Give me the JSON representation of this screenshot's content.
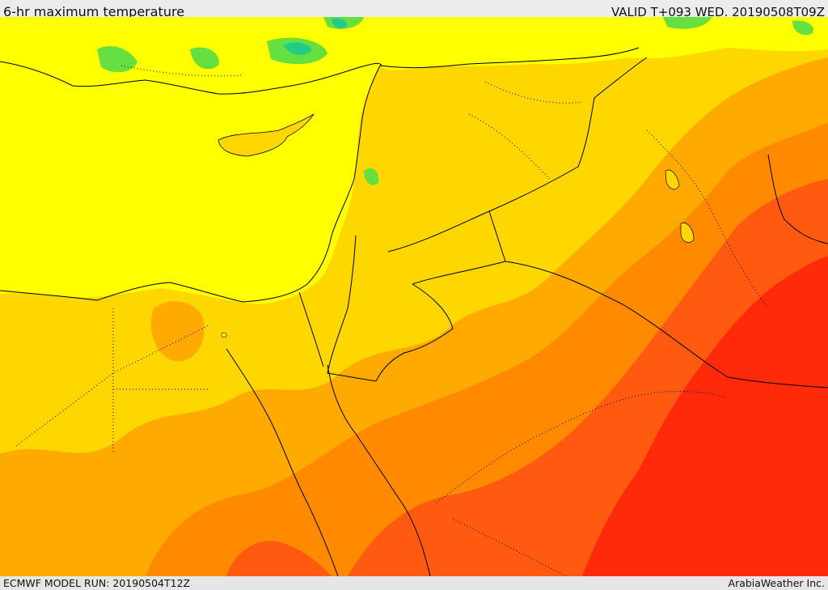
{
  "header": {
    "title": "6-hr maximum temperature",
    "valid": "VALID T+093 WED. 20190508T09Z"
  },
  "footer": {
    "model_run": "ECMWF MODEL RUN: 20190504T12Z",
    "credit": "ArabiaWeather Inc."
  },
  "colors": {
    "sea": "#ffff00",
    "green": "#66e040",
    "cyan": "#22cc88",
    "yellow_orange": "#ffd700",
    "orange": "#ffaa00",
    "dark_orange": "#ff7a00",
    "red_orange": "#ff4c10",
    "red": "#ff2a0a",
    "border": "#000000"
  }
}
